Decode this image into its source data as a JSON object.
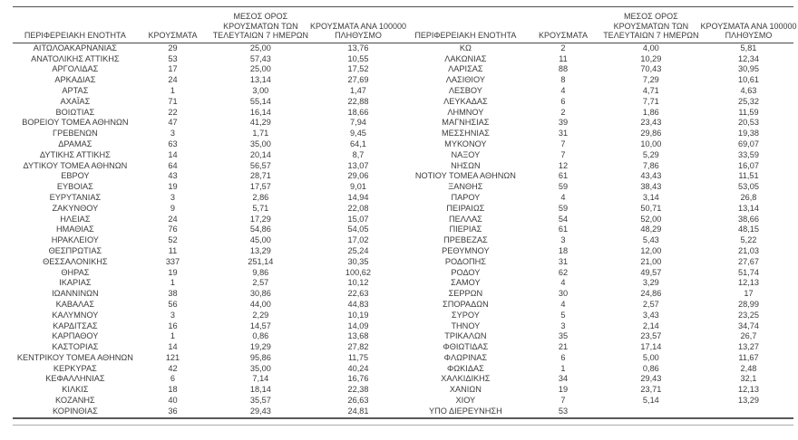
{
  "table_headers": {
    "region": "ΠΕΡΙΦΕΡΕΙΑΚΗ ΕΝΟΤΗΤΑ",
    "cases": "ΚΡΟΥΣΜΑΤΑ",
    "avg7_lines": [
      "ΜΕΣΟΣ ΟΡΟΣ",
      "ΚΡΟΥΣΜΑΤΩΝ ΤΩΝ",
      "ΤΕΛΕΥΤΑΙΩΝ 7 ΗΜΕΡΩΝ"
    ],
    "per100k_lines": [
      "ΚΡΟΥΣΜΑΤΑ ΑΝΑ 100000",
      "ΠΛΗΘΥΣΜΟ"
    ]
  },
  "left_table": {
    "rows": [
      [
        "ΑΙΤΩΛΟΑΚΑΡΝΑΝΙΑΣ",
        "29",
        "25,00",
        "13,76"
      ],
      [
        "ΑΝΑΤΟΛΙΚΗΣ ΑΤΤΙΚΗΣ",
        "53",
        "57,43",
        "10,55"
      ],
      [
        "ΑΡΓΟΛΙΔΑΣ",
        "17",
        "25,00",
        "17,52"
      ],
      [
        "ΑΡΚΑΔΙΑΣ",
        "24",
        "13,14",
        "27,69"
      ],
      [
        "ΑΡΤΑΣ",
        "1",
        "3,00",
        "1,47"
      ],
      [
        "ΑΧΑΪΑΣ",
        "71",
        "55,14",
        "22,88"
      ],
      [
        "ΒΟΙΩΤΙΑΣ",
        "22",
        "16,14",
        "18,66"
      ],
      [
        "ΒΟΡΕΙΟΥ ΤΟΜΕΑ ΑΘΗΝΩΝ",
        "47",
        "41,29",
        "7,94"
      ],
      [
        "ΓΡΕΒΕΝΩΝ",
        "3",
        "1,71",
        "9,45"
      ],
      [
        "ΔΡΑΜΑΣ",
        "63",
        "35,00",
        "64,1"
      ],
      [
        "ΔΥΤΙΚΗΣ ΑΤΤΙΚΗΣ",
        "14",
        "20,14",
        "8,7"
      ],
      [
        "ΔΥΤΙΚΟΥ ΤΟΜΕΑ ΑΘΗΝΩΝ",
        "64",
        "56,57",
        "13,07"
      ],
      [
        "ΕΒΡΟΥ",
        "43",
        "28,71",
        "29,06"
      ],
      [
        "ΕΥΒΟΙΑΣ",
        "19",
        "17,57",
        "9,01"
      ],
      [
        "ΕΥΡΥΤΑΝΙΑΣ",
        "3",
        "2,86",
        "14,94"
      ],
      [
        "ΖΑΚΥΝΘΟΥ",
        "9",
        "5,71",
        "22,08"
      ],
      [
        "ΗΛΕΙΑΣ",
        "24",
        "17,29",
        "15,07"
      ],
      [
        "ΗΜΑΘΙΑΣ",
        "76",
        "54,86",
        "54,05"
      ],
      [
        "ΗΡΑΚΛΕΙΟΥ",
        "52",
        "45,00",
        "17,02"
      ],
      [
        "ΘΕΣΠΡΩΤΙΑΣ",
        "11",
        "13,29",
        "25,24"
      ],
      [
        "ΘΕΣΣΑΛΟΝΙΚΗΣ",
        "337",
        "251,14",
        "30,35"
      ],
      [
        "ΘΗΡΑΣ",
        "19",
        "9,86",
        "100,62"
      ],
      [
        "ΙΚΑΡΙΑΣ",
        "1",
        "2,57",
        "10,12"
      ],
      [
        "ΙΩΑΝΝΙΝΩΝ",
        "38",
        "30,86",
        "22,63"
      ],
      [
        "ΚΑΒΑΛΑΣ",
        "56",
        "44,00",
        "44,83"
      ],
      [
        "ΚΑΛΥΜΝΟΥ",
        "3",
        "2,29",
        "10,19"
      ],
      [
        "ΚΑΡΔΙΤΣΑΣ",
        "16",
        "14,57",
        "14,09"
      ],
      [
        "ΚΑΡΠΑΘΟΥ",
        "1",
        "0,86",
        "13,68"
      ],
      [
        "ΚΑΣΤΟΡΙΑΣ",
        "14",
        "19,29",
        "27,82"
      ],
      [
        "ΚΕΝΤΡΙΚΟΥ ΤΟΜΕΑ ΑΘΗΝΩΝ",
        "121",
        "95,86",
        "11,75"
      ],
      [
        "ΚΕΡΚΥΡΑΣ",
        "42",
        "35,00",
        "40,24"
      ],
      [
        "ΚΕΦΑΛΛΗΝΙΑΣ",
        "6",
        "7,14",
        "16,76"
      ],
      [
        "ΚΙΛΚΙΣ",
        "18",
        "18,14",
        "22,38"
      ],
      [
        "ΚΟΖΑΝΗΣ",
        "40",
        "35,57",
        "26,63"
      ],
      [
        "ΚΟΡΙΝΘΙΑΣ",
        "36",
        "29,43",
        "24,81"
      ]
    ]
  },
  "right_table": {
    "rows": [
      [
        "ΚΩ",
        "2",
        "4,00",
        "5,81"
      ],
      [
        "ΛΑΚΩΝΙΑΣ",
        "11",
        "10,29",
        "12,34"
      ],
      [
        "ΛΑΡΙΣΑΣ",
        "88",
        "70,43",
        "30,95"
      ],
      [
        "ΛΑΣΙΘΙΟΥ",
        "8",
        "7,29",
        "10,61"
      ],
      [
        "ΛΕΣΒΟΥ",
        "4",
        "4,71",
        "4,63"
      ],
      [
        "ΛΕΥΚΑΔΑΣ",
        "6",
        "7,71",
        "25,32"
      ],
      [
        "ΛΗΜΝΟΥ",
        "2",
        "1,86",
        "11,59"
      ],
      [
        "ΜΑΓΝΗΣΙΑΣ",
        "39",
        "23,43",
        "20,53"
      ],
      [
        "ΜΕΣΣΗΝΙΑΣ",
        "31",
        "29,86",
        "19,38"
      ],
      [
        "ΜΥΚΟΝΟΥ",
        "7",
        "10,00",
        "69,07"
      ],
      [
        "ΝΑΞΟΥ",
        "7",
        "5,29",
        "33,59"
      ],
      [
        "ΝΗΣΩΝ",
        "12",
        "7,86",
        "16,07"
      ],
      [
        "ΝΟΤΙΟΥ ΤΟΜΕΑ ΑΘΗΝΩΝ",
        "61",
        "43,43",
        "11,51"
      ],
      [
        "ΞΑΝΘΗΣ",
        "59",
        "38,43",
        "53,05"
      ],
      [
        "ΠΑΡΟΥ",
        "4",
        "3,14",
        "26,8"
      ],
      [
        "ΠΕΙΡΑΙΩΣ",
        "59",
        "50,71",
        "13,14"
      ],
      [
        "ΠΕΛΛΑΣ",
        "54",
        "52,00",
        "38,66"
      ],
      [
        "ΠΙΕΡΙΑΣ",
        "61",
        "48,29",
        "48,15"
      ],
      [
        "ΠΡΕΒΕΖΑΣ",
        "3",
        "5,43",
        "5,22"
      ],
      [
        "ΡΕΘΥΜΝΟΥ",
        "18",
        "12,00",
        "21,03"
      ],
      [
        "ΡΟΔΟΠΗΣ",
        "31",
        "21,00",
        "27,67"
      ],
      [
        "ΡΟΔΟΥ",
        "62",
        "49,57",
        "51,74"
      ],
      [
        "ΣΑΜΟΥ",
        "4",
        "3,29",
        "12,13"
      ],
      [
        "ΣΕΡΡΩΝ",
        "30",
        "24,86",
        "17"
      ],
      [
        "ΣΠΟΡΑΔΩΝ",
        "4",
        "2,57",
        "28,99"
      ],
      [
        "ΣΥΡΟΥ",
        "5",
        "3,43",
        "23,25"
      ],
      [
        "ΤΗΝΟΥ",
        "3",
        "2,14",
        "34,74"
      ],
      [
        "ΤΡΙΚΑΛΩΝ",
        "35",
        "23,57",
        "26,7"
      ],
      [
        "ΦΘΙΩΤΙΔΑΣ",
        "21",
        "17,14",
        "13,27"
      ],
      [
        "ΦΛΩΡΙΝΑΣ",
        "6",
        "5,00",
        "11,67"
      ],
      [
        "ΦΩΚΙΔΑΣ",
        "1",
        "0,86",
        "2,48"
      ],
      [
        "ΧΑΛΚΙΔΙΚΗΣ",
        "34",
        "29,43",
        "32,1"
      ],
      [
        "ΧΑΝΙΩΝ",
        "19",
        "23,71",
        "12,13"
      ],
      [
        "ΧΙΟΥ",
        "7",
        "5,14",
        "13,29"
      ],
      [
        "ΥΠΟ ΔΙΕΡΕΥΝΗΣΗ",
        "53",
        "",
        ""
      ]
    ]
  },
  "colors": {
    "text": "#3b3b3b",
    "rule_dark": "#4f4f4f",
    "header_rule": "#474747",
    "bottom_rule": "#595959",
    "bottom_thin_rule": "#ababab",
    "background": "#ffffff"
  }
}
